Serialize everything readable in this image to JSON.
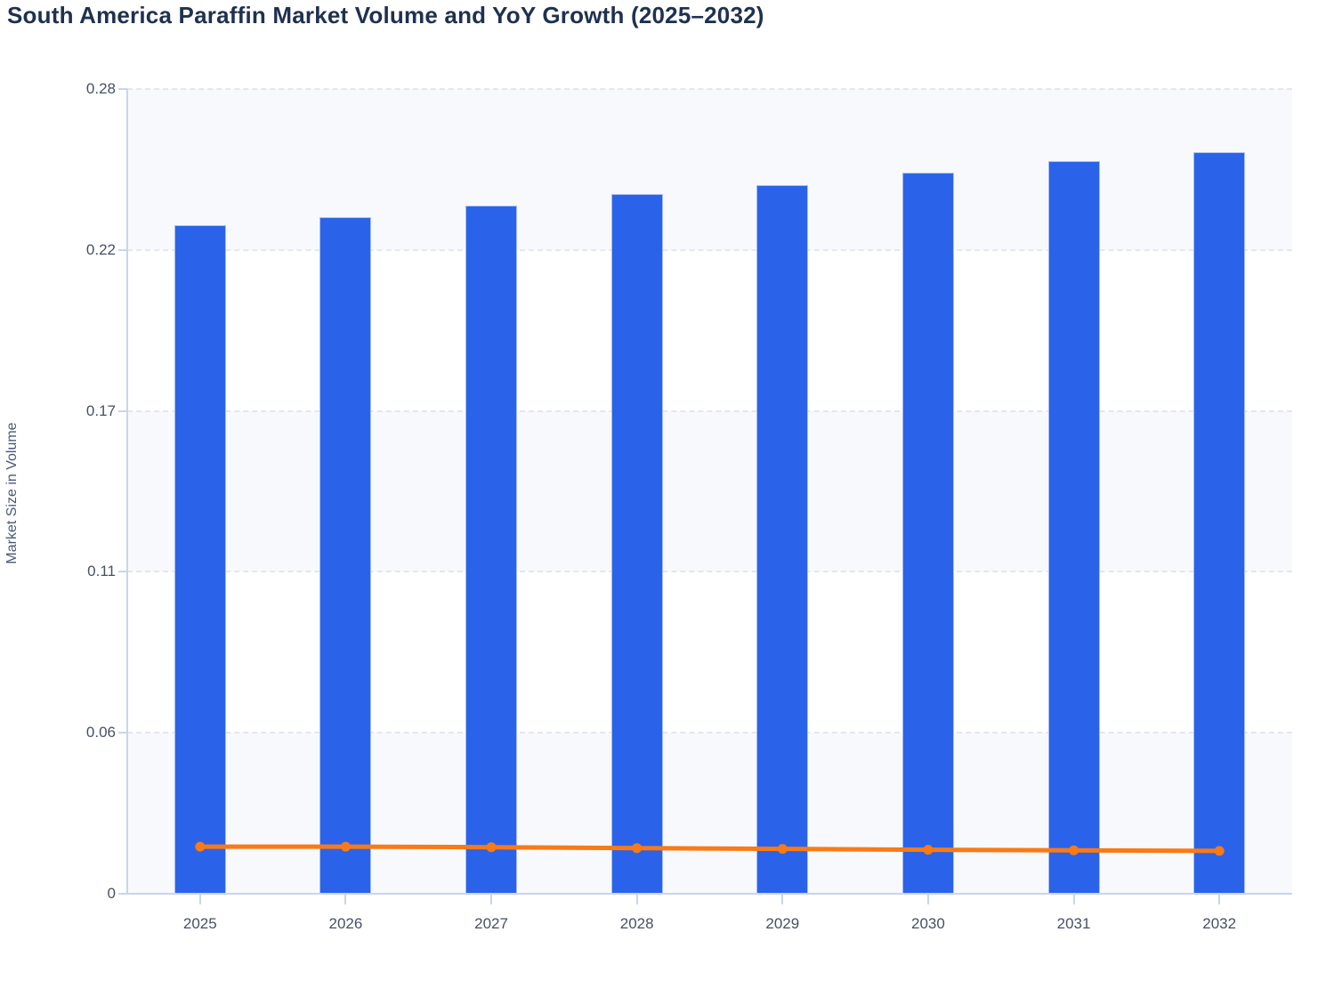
{
  "chart_data": {
    "type": "bar",
    "title": "South America Paraffin Market Volume and YoY Growth (2025–2032)",
    "xlabel": "",
    "ylabel": "Market Size in Volume",
    "categories": [
      "2025",
      "2026",
      "2027",
      "2028",
      "2029",
      "2030",
      "2031",
      "2032"
    ],
    "series": [
      {
        "name": "Market Size in Volume",
        "type": "bar",
        "color": "#2a63e9",
        "values": [
          0.2325,
          0.2355,
          0.2395,
          0.2435,
          0.2465,
          0.251,
          0.255,
          0.258
        ]
      },
      {
        "name": "YoY Growth",
        "type": "line",
        "color": "#f97a16",
        "values": [
          0.0164,
          0.0164,
          0.0162,
          0.0159,
          0.0156,
          0.0153,
          0.0151,
          0.0149
        ]
      }
    ],
    "ylim": [
      0,
      0.28
    ],
    "yticks": {
      "labels": [
        "0",
        "0.06",
        "0.11",
        "0.17",
        "0.22",
        "0.28"
      ],
      "values": [
        0,
        0.056,
        0.112,
        0.168,
        0.224,
        0.28
      ]
    },
    "grid": "horizontal-dashed",
    "legend": "none",
    "plot_background": "alternating-bands",
    "colors": {
      "title_text": "#1f3150",
      "axis_text": "#475066",
      "axis_line": "#c9d4ee",
      "gridline": "#e5e7ee",
      "band_fill": "#f8f9fc",
      "bar_fill": "#2a63e9",
      "bar_stroke": "#a7bdf2",
      "line_stroke": "#f97a16"
    }
  }
}
